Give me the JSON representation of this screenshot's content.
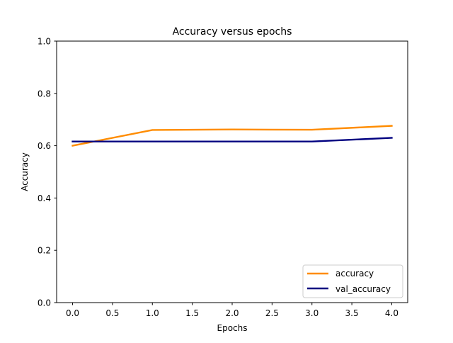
{
  "chart_data": {
    "type": "line",
    "title": "Accuracy versus epochs",
    "xlabel": "Epochs",
    "ylabel": "Accuracy",
    "x": [
      0,
      1,
      2,
      3,
      4
    ],
    "xlim": [
      -0.2,
      4.2
    ],
    "ylim": [
      0.0,
      1.0
    ],
    "xticks": [
      0.0,
      0.5,
      1.0,
      1.5,
      2.0,
      2.5,
      3.0,
      3.5,
      4.0
    ],
    "xtick_labels": [
      "0.0",
      "0.5",
      "1.0",
      "1.5",
      "2.0",
      "2.5",
      "3.0",
      "3.5",
      "4.0"
    ],
    "yticks": [
      0.0,
      0.2,
      0.4,
      0.6,
      0.8,
      1.0
    ],
    "ytick_labels": [
      "0.0",
      "0.2",
      "0.4",
      "0.6",
      "0.8",
      "1.0"
    ],
    "grid": false,
    "legend_position": "bottom-right",
    "series": [
      {
        "name": "accuracy",
        "color": "#ff8c00",
        "values": [
          0.6,
          0.66,
          0.662,
          0.661,
          0.676
        ]
      },
      {
        "name": "val_accuracy",
        "color": "#000080",
        "values": [
          0.616,
          0.616,
          0.616,
          0.616,
          0.63
        ]
      }
    ]
  }
}
